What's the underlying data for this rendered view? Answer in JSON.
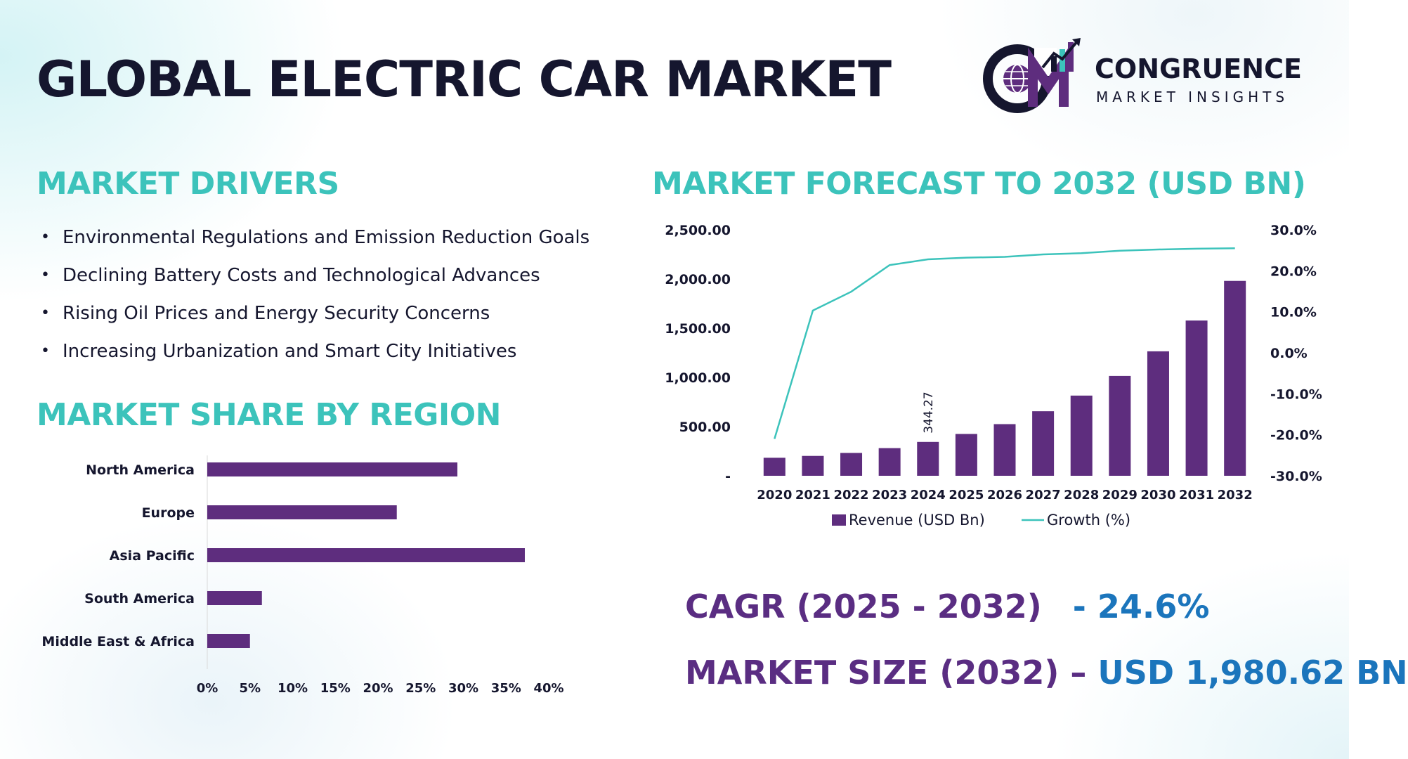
{
  "header": {
    "title": "GLOBAL ELECTRIC CAR MARKET",
    "logo_word": "CONGRUENCE",
    "logo_sub": "MARKET INSIGHTS"
  },
  "colors": {
    "title": "#15162e",
    "section": "#3cc3bb",
    "bar": "#5e2d7e",
    "line": "#3cc3bb",
    "kpi_label": "#5a2d82",
    "kpi_value": "#1b75bc"
  },
  "drivers": {
    "title": "MARKET DRIVERS",
    "items": [
      "Environmental Regulations and Emission Reduction Goals",
      "Declining Battery Costs and Technological Advances",
      "Rising Oil Prices and Energy Security Concerns",
      "Increasing Urbanization and Smart City Initiatives"
    ]
  },
  "region": {
    "title": "MARKET SHARE BY REGION"
  },
  "forecast": {
    "title": "MARKET FORECAST TO 2032 (USD BN)"
  },
  "kpis": {
    "cagr_label": "CAGR (2025 - 2032)",
    "cagr_value": "- 24.6%",
    "size_label": "MARKET SIZE (2032) –",
    "size_value": "USD 1,980.62 BN"
  },
  "chart_data": [
    {
      "type": "bar",
      "orientation": "horizontal",
      "title": "MARKET SHARE BY REGION",
      "categories": [
        "North America",
        "Europe",
        "Asia Pacific",
        "South America",
        "Middle East & Africa"
      ],
      "values": [
        29.3,
        22.2,
        37.2,
        6.4,
        5.0
      ],
      "xlim": [
        0,
        40
      ],
      "x_ticks": [
        "0%",
        "5%",
        "10%",
        "15%",
        "20%",
        "25%",
        "30%",
        "35%",
        "40%"
      ],
      "grid": false
    },
    {
      "type": "bar+line",
      "title": "MARKET FORECAST TO 2032 (USD BN)",
      "categories": [
        "2020",
        "2021",
        "2022",
        "2023",
        "2024",
        "2025",
        "2026",
        "2027",
        "2028",
        "2029",
        "2030",
        "2031",
        "2032"
      ],
      "series": [
        {
          "name": "Revenue (USD Bn)",
          "type": "bar",
          "axis": "left",
          "values": [
            183,
            202,
            232,
            281,
            344.27,
            425,
            525,
            656,
            815,
            1015,
            1265,
            1578,
            1980.62
          ]
        },
        {
          "name": "Growth (%)",
          "type": "line",
          "axis": "right",
          "values": [
            -21.0,
            10.3,
            14.9,
            21.4,
            22.8,
            23.2,
            23.4,
            24.0,
            24.3,
            24.9,
            25.2,
            25.4,
            25.5
          ]
        }
      ],
      "data_labels": [
        {
          "category": "2024",
          "series": "Revenue (USD Bn)",
          "text": "344.27"
        }
      ],
      "y_left_ticks": [
        "-",
        "500.00",
        "1,000.00",
        "1,500.00",
        "2,000.00",
        "2,500.00"
      ],
      "ylim_left": [
        0,
        2500
      ],
      "y_right_ticks": [
        "-30.0%",
        "-20.0%",
        "-10.0%",
        "0.0%",
        "10.0%",
        "20.0%",
        "30.0%"
      ],
      "ylim_right": [
        -30,
        30
      ],
      "legend": "bottom",
      "grid": false
    }
  ]
}
